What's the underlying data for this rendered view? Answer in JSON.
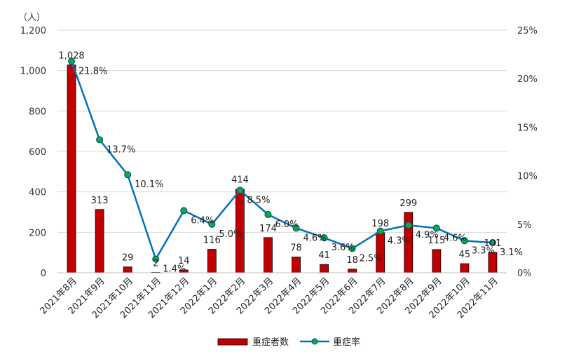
{
  "chart_data": {
    "type": "bar",
    "left_axis_unit": "（人）",
    "categories": [
      "2021年8月",
      "2021年9月",
      "2021年10月",
      "2021年11月",
      "2021年12月",
      "2022年1月",
      "2022年2月",
      "2022年3月",
      "2022年4月",
      "2022年5月",
      "2022年6月",
      "2022年7月",
      "2022年8月",
      "2022年9月",
      "2022年10月",
      "2022年11月"
    ],
    "series": [
      {
        "name": "重症者数",
        "type": "bar",
        "axis": "left",
        "color": "#c00000",
        "values": [
          1028,
          313,
          29,
          2,
          14,
          116,
          414,
          174,
          78,
          41,
          18,
          198,
          299,
          115,
          45,
          101
        ],
        "labels": [
          "1,028",
          "313",
          "29",
          "2",
          "14",
          "116",
          "414",
          "174",
          "78",
          "41",
          "18",
          "198",
          "299",
          "115",
          "45",
          "101"
        ]
      },
      {
        "name": "重症率",
        "type": "line",
        "axis": "right",
        "color": "#0070c0",
        "marker_color": "#00b050",
        "values": [
          21.8,
          13.7,
          10.1,
          1.4,
          6.4,
          5.0,
          8.5,
          6.0,
          4.6,
          3.6,
          2.5,
          4.3,
          4.9,
          4.6,
          3.3,
          3.1
        ],
        "labels": [
          "21.8%",
          "13.7%",
          "10.1%",
          "1.4%",
          "6.4%",
          "5.0%",
          "8.5%",
          "6.0%",
          "4.6%",
          "3.6%",
          "2.5%",
          "4.3%",
          "4.9%",
          "4.6%",
          "3.3%",
          "3.1%"
        ]
      }
    ],
    "ylim": [
      0,
      1200
    ],
    "y_ticks": [
      "0",
      "200",
      "400",
      "600",
      "800",
      "1,000",
      "1,200"
    ],
    "y2lim": [
      0,
      25
    ],
    "y2_ticks": [
      "0%",
      "5%",
      "10%",
      "15%",
      "20%",
      "25%"
    ],
    "grid": true,
    "legend_position": "bottom"
  }
}
